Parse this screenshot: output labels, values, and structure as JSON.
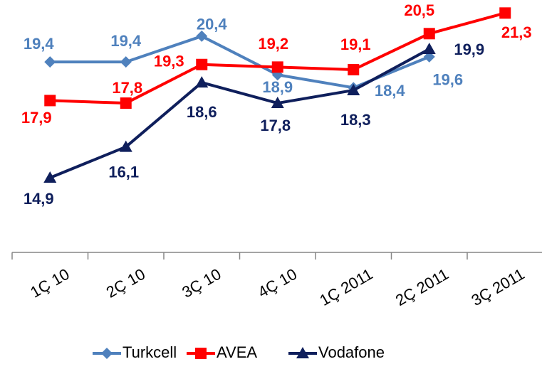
{
  "chart_data": {
    "type": "line",
    "categories": [
      "1Ç 10",
      "2Ç 10",
      "3Ç 10",
      "4Ç 10",
      "1Ç 2011",
      "2Ç 2011",
      "3Ç 2011"
    ],
    "series": [
      {
        "name": "Turkcell",
        "color": "#4f81bd",
        "marker": "diamond",
        "values": [
          19.4,
          19.4,
          20.4,
          18.9,
          18.4,
          19.6,
          null
        ],
        "value_labels": [
          "19,4",
          "19,4",
          "20,4",
          "18,9",
          "18,4",
          "19,6",
          null
        ]
      },
      {
        "name": "AVEA",
        "color": "#ff0000",
        "marker": "square",
        "values": [
          17.9,
          17.8,
          19.3,
          19.2,
          19.1,
          20.5,
          21.3
        ],
        "value_labels": [
          "17,9",
          "17,8",
          "19,3",
          "19,2",
          "19,1",
          "20,5",
          "21,3"
        ]
      },
      {
        "name": "Vodafone",
        "color": "#0f1f5c",
        "marker": "triangle",
        "values": [
          14.9,
          16.1,
          18.6,
          17.8,
          18.3,
          19.9,
          null
        ],
        "value_labels": [
          "14,9",
          "16,1",
          "18,6",
          "17,8",
          "18,3",
          "19,9",
          null
        ]
      }
    ],
    "ylim": [
      12,
      22
    ],
    "legend": "bottom"
  }
}
